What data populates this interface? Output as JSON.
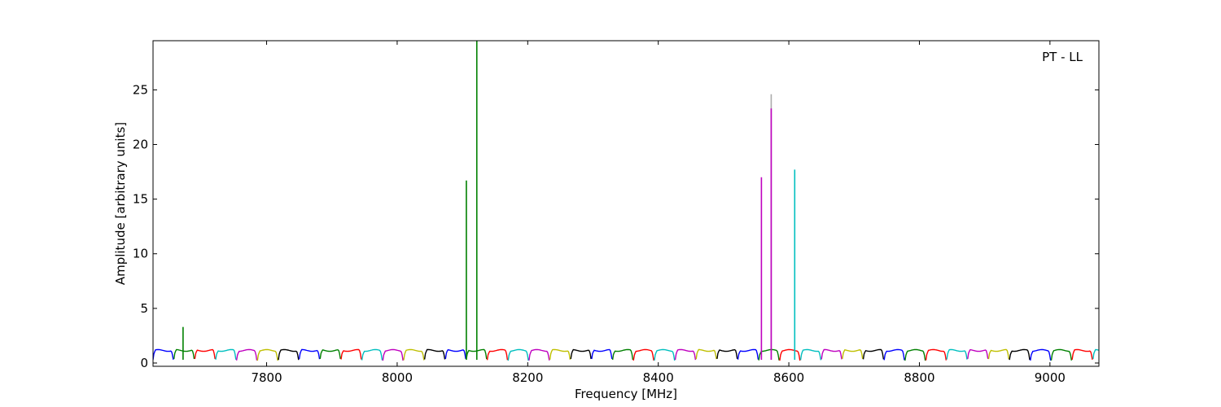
{
  "chart_data": {
    "type": "line",
    "title": "",
    "xlabel": "Frequency [MHz]",
    "ylabel": "Amplitude [arbitrary units]",
    "annotation": "PT - LL",
    "xlim": [
      7626,
      9075
    ],
    "ylim": [
      -0.3,
      29.5
    ],
    "xticks": [
      7800,
      8000,
      8200,
      8400,
      8600,
      8800,
      9000
    ],
    "yticks": [
      0,
      5,
      10,
      15,
      20,
      25
    ],
    "grid": false,
    "colors": [
      "#0000ff",
      "#008000",
      "#ff0000",
      "#00bfbf",
      "#bf00bf",
      "#bfbf00",
      "#000000"
    ],
    "channel_start": 7626,
    "channel_width": 32,
    "channel_baseline": 1.15,
    "channel_dip": 0.3,
    "spikes": [
      {
        "x": 7672,
        "y": 3.3,
        "color": "#008000"
      },
      {
        "x": 8106,
        "y": 16.7,
        "color": "#008000"
      },
      {
        "x": 8122,
        "y": 29.5,
        "color": "#008000"
      },
      {
        "x": 8558,
        "y": 17.0,
        "color": "#bf00bf"
      },
      {
        "x": 8573,
        "y": 24.6,
        "color": "#aaaaaa"
      },
      {
        "x": 8573,
        "y": 23.3,
        "color": "#bf00bf"
      },
      {
        "x": 8609,
        "y": 17.7,
        "color": "#00bfbf"
      }
    ]
  }
}
